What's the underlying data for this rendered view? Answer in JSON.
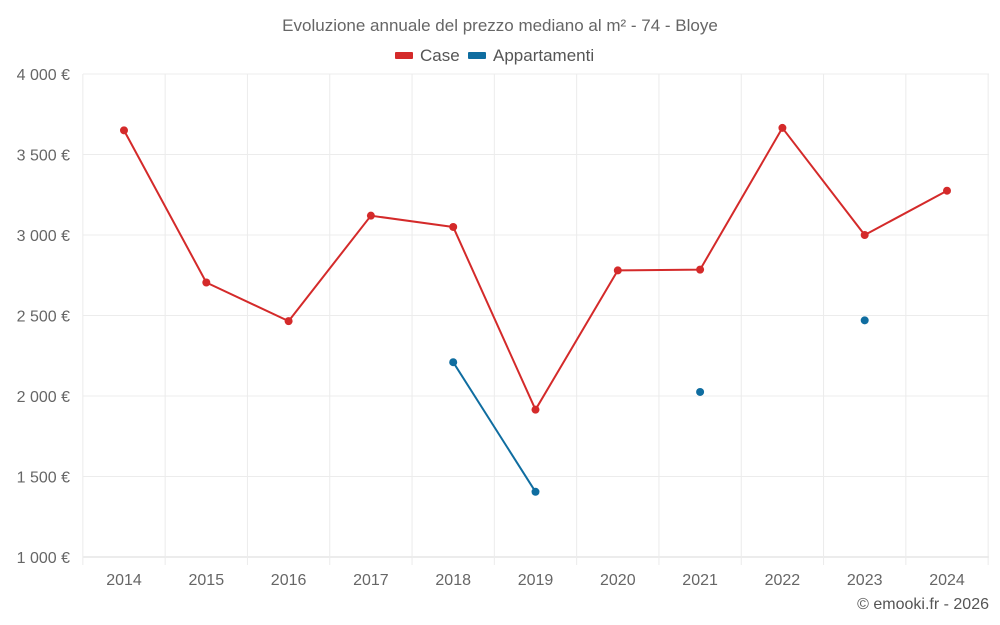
{
  "chart_data": {
    "type": "line",
    "title": "Evoluzione annuale del prezzo mediano al m² - 74 - Bloye",
    "categories": [
      "2014",
      "2015",
      "2016",
      "2017",
      "2018",
      "2019",
      "2020",
      "2021",
      "2022",
      "2023",
      "2024"
    ],
    "series": [
      {
        "name": "Case",
        "color": "#d42a2a",
        "values": [
          3650,
          2705,
          2465,
          3120,
          3050,
          1915,
          2780,
          2785,
          3665,
          3000,
          3275
        ]
      },
      {
        "name": "Appartamenti",
        "color": "#0f6da0",
        "values": [
          null,
          null,
          null,
          null,
          2210,
          1405,
          null,
          2025,
          null,
          2470,
          null
        ]
      }
    ],
    "ylim": [
      1000,
      4000
    ],
    "yticks": [
      1000,
      1500,
      2000,
      2500,
      3000,
      3500,
      4000
    ],
    "ytick_labels": [
      "1 000 €",
      "1 500 €",
      "2 000 €",
      "2 500 €",
      "3 000 €",
      "3 500 €",
      "4 000 €"
    ],
    "xlabel": "",
    "ylabel": "",
    "grid": true,
    "legend_position": "top-center",
    "credit": "© emooki.fr - 2026"
  }
}
